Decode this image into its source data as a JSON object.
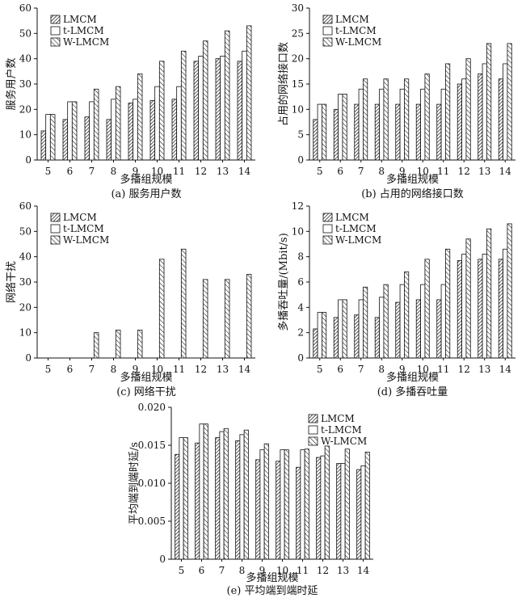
{
  "figure": {
    "x_axis_label": "多播组规模",
    "legend": [
      "LMCM",
      "t-LMCM",
      "W-LMCM"
    ]
  },
  "chart_data": [
    {
      "type": "bar",
      "id": "a",
      "title": "(a) 服务用户数",
      "xlabel": "多播组规模",
      "ylabel": "服务用户数",
      "categories": [
        "5",
        "6",
        "7",
        "8",
        "9",
        "10",
        "11",
        "12",
        "13",
        "14"
      ],
      "ylim": [
        0,
        60
      ],
      "yticks": [
        "0",
        "10",
        "20",
        "30",
        "40",
        "50",
        "60"
      ],
      "yticks_values": [
        0,
        10,
        20,
        30,
        40,
        50,
        60
      ],
      "legend_position": "top-left",
      "series": [
        {
          "name": "LMCM",
          "values": [
            11.5,
            16,
            17,
            16,
            22.5,
            23.5,
            24,
            39,
            40,
            39
          ]
        },
        {
          "name": "t-LMCM",
          "values": [
            18,
            23,
            23,
            24,
            24,
            29,
            29,
            41,
            41,
            43
          ]
        },
        {
          "name": "W-LMCM",
          "values": [
            18,
            23,
            28,
            29,
            34,
            39,
            43,
            47,
            51,
            53
          ]
        }
      ]
    },
    {
      "type": "bar",
      "id": "b",
      "title": "(b) 占用的网络接口数",
      "xlabel": "多播组规模",
      "ylabel": "占用的网络接口数",
      "categories": [
        "5",
        "6",
        "7",
        "8",
        "9",
        "10",
        "11",
        "12",
        "13",
        "14"
      ],
      "ylim": [
        0,
        30
      ],
      "yticks": [
        "0",
        "5",
        "10",
        "15",
        "20",
        "25",
        "30"
      ],
      "yticks_values": [
        0,
        5,
        10,
        15,
        20,
        25,
        30
      ],
      "legend_position": "top-left",
      "series": [
        {
          "name": "LMCM",
          "values": [
            8,
            10,
            11,
            11,
            11,
            11,
            11,
            15,
            17,
            16
          ]
        },
        {
          "name": "t-LMCM",
          "values": [
            11,
            13,
            14,
            14,
            14,
            14,
            14,
            16,
            19,
            19
          ]
        },
        {
          "name": "W-LMCM",
          "values": [
            11,
            13,
            16,
            16,
            16,
            17,
            19,
            20,
            23,
            23
          ]
        }
      ]
    },
    {
      "type": "bar",
      "id": "c",
      "title": "(c) 网络干扰",
      "xlabel": "多播组规模",
      "ylabel": "网络干扰",
      "categories": [
        "5",
        "6",
        "7",
        "8",
        "9",
        "10",
        "11",
        "12",
        "13",
        "14"
      ],
      "ylim": [
        0,
        60
      ],
      "yticks": [
        "0",
        "10",
        "20",
        "30",
        "40",
        "50",
        "60"
      ],
      "yticks_values": [
        0,
        10,
        20,
        30,
        40,
        50,
        60
      ],
      "legend_position": "top-left",
      "series": [
        {
          "name": "LMCM",
          "values": [
            0,
            0,
            0,
            0,
            0,
            0,
            0,
            0,
            0,
            0
          ]
        },
        {
          "name": "t-LMCM",
          "values": [
            0,
            0,
            0,
            0,
            0,
            0,
            0,
            0,
            0,
            0
          ]
        },
        {
          "name": "W-LMCM",
          "values": [
            0,
            0,
            10,
            11,
            11,
            39,
            43,
            31,
            31,
            33
          ]
        }
      ]
    },
    {
      "type": "bar",
      "id": "d",
      "title": "(d) 多播吞吐量",
      "xlabel": "多播组规模",
      "ylabel": "多播吞吐量/(Mbit/s)",
      "categories": [
        "5",
        "6",
        "7",
        "8",
        "9",
        "10",
        "11",
        "12",
        "13",
        "14"
      ],
      "ylim": [
        0,
        12
      ],
      "yticks": [
        "0",
        "2",
        "4",
        "6",
        "8",
        "10",
        "12"
      ],
      "yticks_values": [
        0,
        2,
        4,
        6,
        8,
        10,
        12
      ],
      "legend_position": "top-left",
      "series": [
        {
          "name": "LMCM",
          "values": [
            2.3,
            3.2,
            3.4,
            3.2,
            4.4,
            4.6,
            4.6,
            7.7,
            7.8,
            7.8
          ]
        },
        {
          "name": "t-LMCM",
          "values": [
            3.6,
            4.6,
            4.6,
            4.8,
            5.8,
            5.8,
            5.8,
            8.2,
            8.2,
            8.6
          ]
        },
        {
          "name": "W-LMCM",
          "values": [
            3.6,
            4.6,
            5.6,
            5.8,
            6.8,
            7.8,
            8.6,
            9.4,
            10.2,
            10.6
          ]
        }
      ]
    },
    {
      "type": "bar",
      "id": "e",
      "title": "(e) 平均端到端时延",
      "xlabel": "多播组规模",
      "ylabel": "平均端到端时延/s",
      "categories": [
        "5",
        "6",
        "7",
        "8",
        "9",
        "10",
        "11",
        "12",
        "13",
        "14"
      ],
      "ylim": [
        0,
        0.02
      ],
      "yticks": [
        "0",
        "0.005",
        "0.010",
        "0.015",
        "0.020"
      ],
      "yticks_values": [
        0,
        0.005,
        0.01,
        0.015,
        0.02
      ],
      "legend_position": "top-right",
      "series": [
        {
          "name": "LMCM",
          "values": [
            0.0138,
            0.0153,
            0.016,
            0.0156,
            0.0131,
            0.0129,
            0.0121,
            0.0134,
            0.0126,
            0.0118
          ]
        },
        {
          "name": "t-LMCM",
          "values": [
            0.016,
            0.0178,
            0.0168,
            0.0164,
            0.0144,
            0.0144,
            0.0144,
            0.0136,
            0.0126,
            0.0123
          ]
        },
        {
          "name": "W-LMCM",
          "values": [
            0.016,
            0.0178,
            0.0172,
            0.017,
            0.0152,
            0.0144,
            0.0145,
            0.0149,
            0.0145,
            0.0141
          ]
        }
      ]
    }
  ]
}
